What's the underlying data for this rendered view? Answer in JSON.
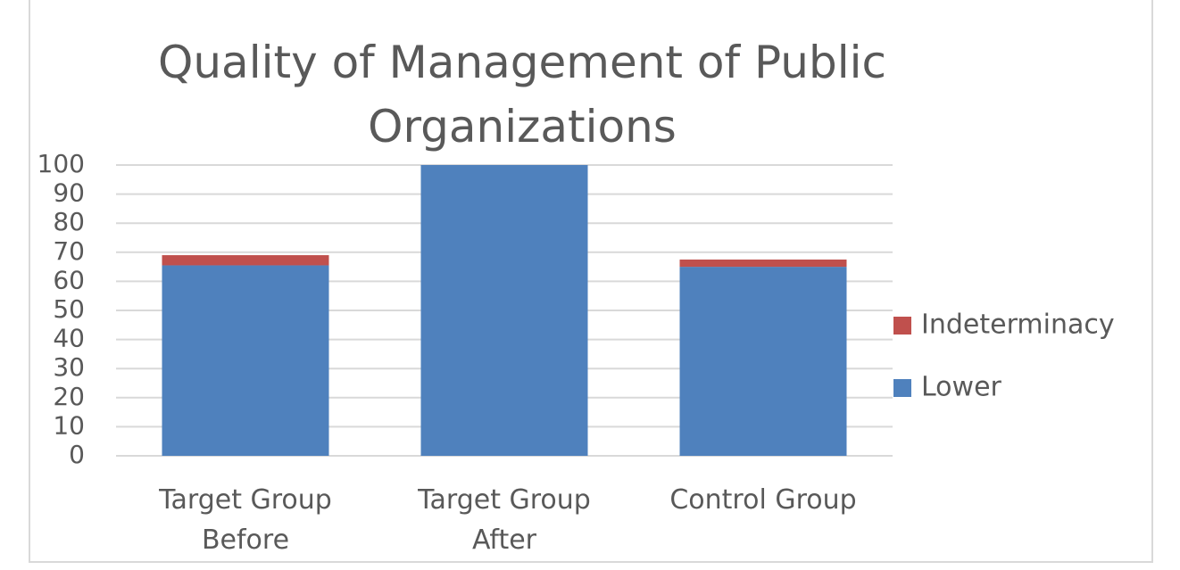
{
  "chart_data": {
    "type": "stacked_bar",
    "title": "Quality of Management of Public Organizations",
    "categories": [
      "Target Group Before",
      "Target Group After",
      "Control Group"
    ],
    "series": [
      {
        "name": "Lower",
        "color": "#4f81bd",
        "values": [
          65.5,
          100,
          65
        ]
      },
      {
        "name": "Indeterminacy",
        "color": "#c0504d",
        "values": [
          3.5,
          0,
          2.5
        ]
      }
    ],
    "ylim": [
      0,
      100
    ],
    "yticks": [
      0,
      10,
      20,
      30,
      40,
      50,
      60,
      70,
      80,
      90,
      100
    ],
    "grid": true,
    "legend": "right"
  }
}
